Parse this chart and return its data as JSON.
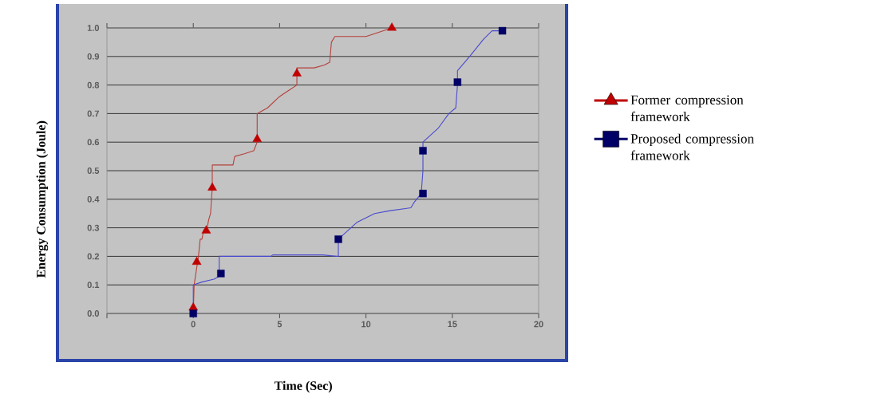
{
  "chart_data": {
    "type": "line",
    "xlabel": "Time (Sec)",
    "ylabel": "Energy Consumption (Joule)",
    "xlim": [
      -5,
      20
    ],
    "ylim": [
      0,
      1
    ],
    "xticks": [
      {
        "value": -5,
        "label": null
      },
      0,
      5,
      10,
      15,
      20
    ],
    "yticks": [
      {
        "value": 0,
        "label": "0.0"
      },
      0.1,
      0.2,
      0.3,
      0.4,
      0.5,
      0.6,
      0.7,
      0.8,
      0.9,
      {
        "value": 1,
        "label": "1.0"
      }
    ],
    "grid": "y",
    "legend": "right",
    "series": [
      {
        "type": "line",
        "marker": "none",
        "color": "#b5403a",
        "x": [
          0,
          0.05,
          0.1,
          0.3,
          0.4,
          0.5,
          0.6,
          0.8,
          0.9,
          1.0,
          1.1,
          1.1,
          1.5,
          2.3,
          2.4,
          3.0,
          3.5,
          3.7,
          3.7,
          4.3,
          5.0,
          5.5,
          6.0,
          6.0,
          7.0,
          7.6,
          7.9,
          8.0,
          8.2,
          9.0,
          10.0,
          10.5,
          11.5
        ],
        "values": [
          0,
          0.1,
          0.12,
          0.2,
          0.26,
          0.26,
          0.29,
          0.3,
          0.33,
          0.35,
          0.44,
          0.52,
          0.52,
          0.52,
          0.55,
          0.56,
          0.57,
          0.6,
          0.7,
          0.72,
          0.76,
          0.78,
          0.8,
          0.86,
          0.86,
          0.87,
          0.88,
          0.95,
          0.97,
          0.97,
          0.97,
          0.98,
          1.0
        ]
      },
      {
        "type": "scatter",
        "marker": "triangle",
        "name": "Former compression framework",
        "color": "#c00000",
        "x": [
          0,
          0.2,
          0.75,
          1.1,
          3.7,
          6.0,
          11.5
        ],
        "values": [
          0.02,
          0.18,
          0.29,
          0.44,
          0.61,
          0.84,
          1.0
        ]
      },
      {
        "type": "line",
        "marker": "none",
        "color": "#4a4ad0",
        "x": [
          0,
          0,
          0.5,
          1.2,
          1.5,
          1.5,
          4.5,
          4.6,
          7.5,
          8.3,
          8.4,
          8.4,
          9.5,
          10.5,
          11.4,
          12.6,
          12.8,
          13.2,
          13.3,
          13.3,
          14.2,
          14.8,
          15.2,
          15.3,
          15.3,
          16.0,
          16.8,
          17.3,
          17.9
        ],
        "values": [
          0,
          0.1,
          0.11,
          0.12,
          0.13,
          0.2,
          0.2,
          0.205,
          0.205,
          0.2,
          0.2,
          0.26,
          0.32,
          0.35,
          0.36,
          0.37,
          0.39,
          0.42,
          0.5,
          0.6,
          0.65,
          0.7,
          0.72,
          0.8,
          0.85,
          0.9,
          0.96,
          0.99,
          0.99
        ]
      },
      {
        "type": "scatter",
        "marker": "square",
        "name": "Proposed compression framework",
        "color": "#000066",
        "x": [
          0,
          1.6,
          8.4,
          13.3,
          13.3,
          15.3,
          17.9
        ],
        "values": [
          0,
          0.14,
          0.26,
          0.42,
          0.57,
          0.81,
          0.99
        ]
      }
    ]
  }
}
